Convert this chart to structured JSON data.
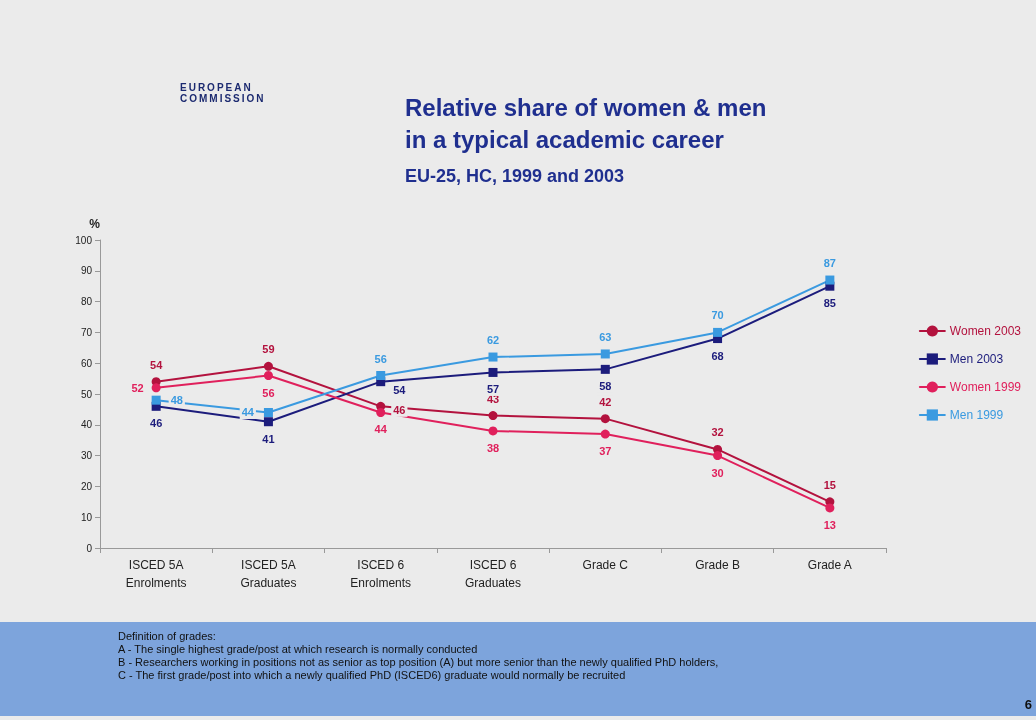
{
  "chart_data": {
    "type": "line",
    "title": "Relative share of women & men\nin a typical academic career",
    "subtitle": "EU-25, HC, 1999 and 2003",
    "ylabel": "%",
    "categories": [
      "ISCED 5A\nEnrolments",
      "ISCED 5A\nGraduates",
      "ISCED 6\nEnrolments",
      "ISCED 6\nGraduates",
      "Grade C",
      "Grade B",
      "Grade A"
    ],
    "series": [
      {
        "name": "Women 2003",
        "color": "#b3123e",
        "marker": "circle",
        "values": [
          54,
          59,
          46,
          43,
          42,
          32,
          15
        ]
      },
      {
        "name": "Men 2003",
        "color": "#1c1c7c",
        "marker": "square",
        "values": [
          46,
          41,
          54,
          57,
          58,
          68,
          85
        ]
      },
      {
        "name": "Women 1999",
        "color": "#e0205c",
        "marker": "circle",
        "values": [
          52,
          56,
          44,
          38,
          37,
          30,
          13
        ]
      },
      {
        "name": "Men 1999",
        "color": "#3a9ae0",
        "marker": "square",
        "values": [
          48,
          44,
          56,
          62,
          63,
          70,
          87
        ]
      }
    ],
    "ylim": [
      0,
      100
    ],
    "yticks": [
      0,
      10,
      20,
      30,
      40,
      50,
      60,
      70,
      80,
      90,
      100
    ],
    "grid": false,
    "legend": "right",
    "data_labels": true,
    "annotations": [
      "EUROPEAN\nCOMMISSION",
      "Definition of grades:\nA - The single highest grade/post at which research is normally conducted\nB - Researchers working in positions not as senior as top position (A) but more senior than the newly qualified PhD holders,\nC - The first grade/post into which a newly qualified PhD (ISCED6) graduate would normally be recruited",
      "6"
    ]
  }
}
